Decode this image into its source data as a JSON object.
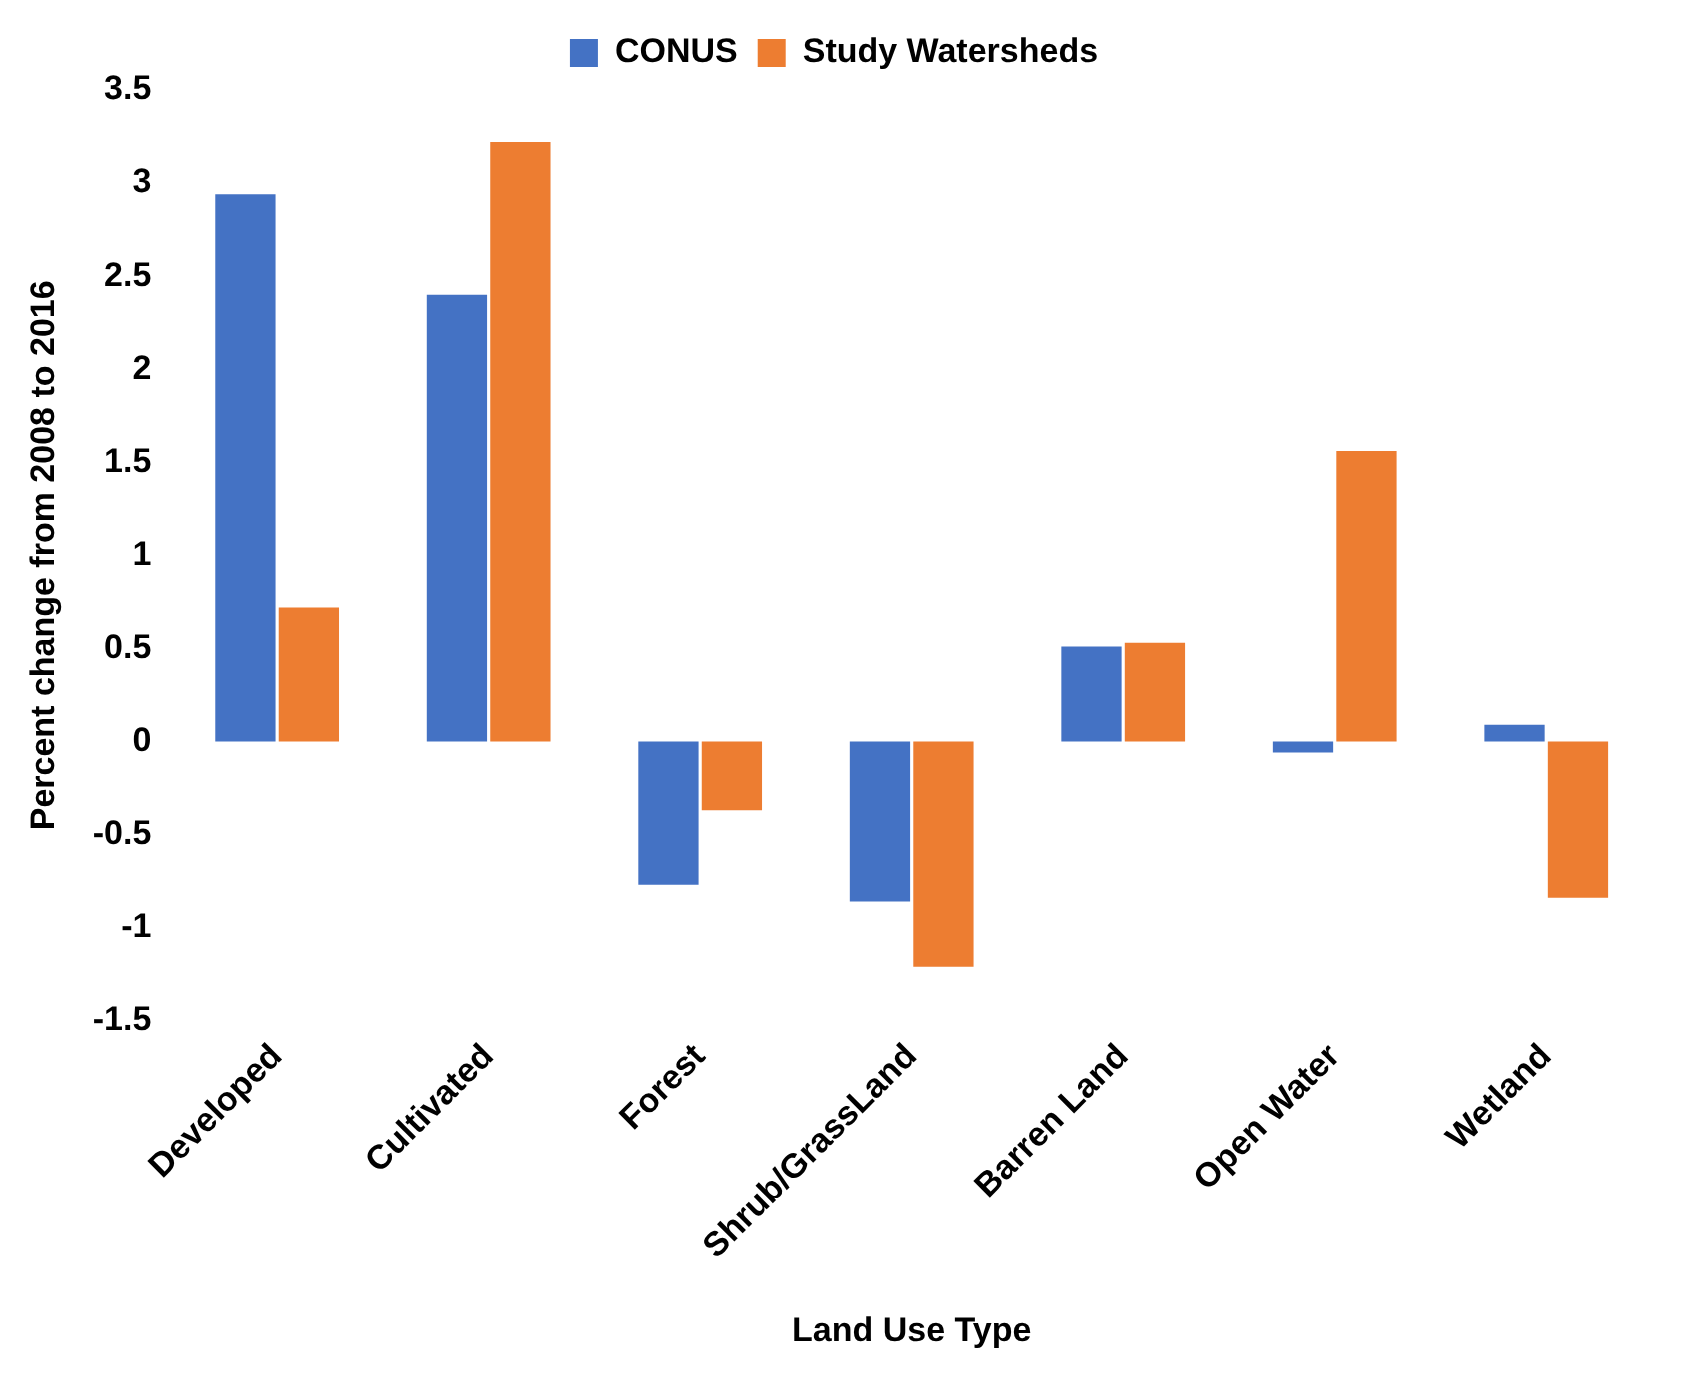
{
  "chart_data": {
    "type": "bar",
    "xlabel": "Land Use Type",
    "ylabel": "Percent change from 2008 to 2016",
    "categories": [
      "Developed",
      "Cultivated",
      "Forest",
      "Shrub/GrassLand",
      "Barren Land",
      "Open Water",
      "Wetland"
    ],
    "series": [
      {
        "name": "CONUS",
        "color": "#4472c4",
        "values": [
          2.94,
          2.4,
          -0.77,
          -0.86,
          0.51,
          -0.06,
          0.09
        ]
      },
      {
        "name": "Study Watersheds",
        "color": "#ed7d31",
        "values": [
          0.72,
          3.22,
          -0.37,
          -1.21,
          0.53,
          1.56,
          -0.84
        ]
      }
    ],
    "ylim": [
      -1.5,
      3.5
    ],
    "yticks": [
      {
        "value": -1.5,
        "label": "-1.5"
      },
      {
        "value": -1,
        "label": "-1"
      },
      {
        "value": -0.5,
        "label": "-0.5"
      },
      0,
      0.5,
      1,
      1.5,
      2,
      2.5,
      3,
      3.5
    ],
    "grid": false,
    "legend": "top"
  }
}
